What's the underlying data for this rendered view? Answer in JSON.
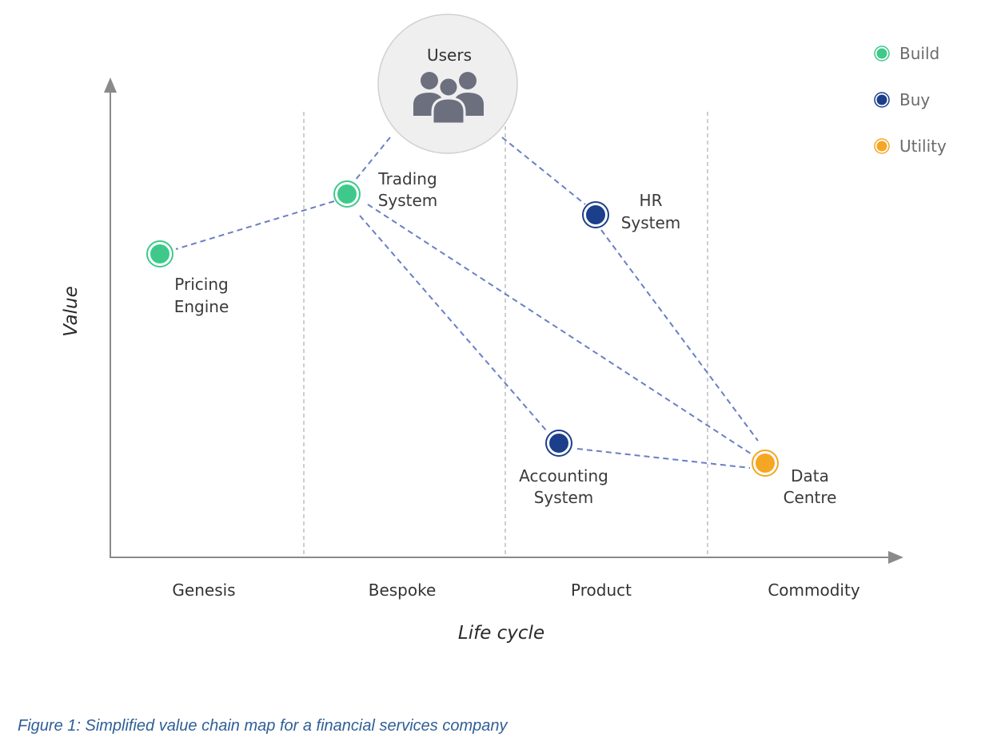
{
  "axes": {
    "y_label": "Value",
    "x_label": "Life cycle",
    "stages": [
      "Genesis",
      "Bespoke",
      "Product",
      "Commodity"
    ]
  },
  "users": {
    "label": "Users",
    "icon": "users-group-icon"
  },
  "legend": [
    {
      "label": "Build",
      "color": "#3ec98a"
    },
    {
      "label": "Buy",
      "color": "#1c3f8c"
    },
    {
      "label": "Utility",
      "color": "#f5a623"
    }
  ],
  "nodes": {
    "pricing_engine": {
      "line1": "Pricing",
      "line2": "Engine",
      "type": "Build"
    },
    "trading_system": {
      "line1": "Trading",
      "line2": "System",
      "type": "Build"
    },
    "hr_system": {
      "line1": "HR",
      "line2": "System",
      "type": "Buy"
    },
    "accounting_system": {
      "line1": "Accounting",
      "line2": "System",
      "type": "Buy"
    },
    "data_centre": {
      "line1": "Data",
      "line2": "Centre",
      "type": "Utility"
    }
  },
  "links": [
    [
      "users",
      "trading_system"
    ],
    [
      "users",
      "hr_system"
    ],
    [
      "trading_system",
      "pricing_engine"
    ],
    [
      "trading_system",
      "accounting_system"
    ],
    [
      "trading_system",
      "data_centre"
    ],
    [
      "hr_system",
      "data_centre"
    ],
    [
      "accounting_system",
      "data_centre"
    ]
  ],
  "caption": "Figure 1: Simplified value chain map for a financial services company"
}
